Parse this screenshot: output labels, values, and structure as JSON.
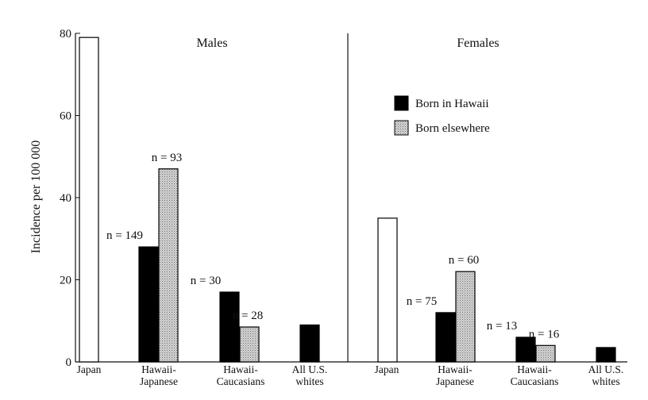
{
  "chart_data": {
    "type": "bar",
    "ylabel": "Incidence per 100 000",
    "ylim": [
      0,
      80
    ],
    "yticks": [
      "0",
      "20",
      "40",
      "60",
      "80"
    ],
    "grid": false,
    "legend_position": "top-right of females panel",
    "legend": [
      {
        "label": "Born in Hawaii",
        "pattern": "solid-black"
      },
      {
        "label": "Born elsewhere",
        "pattern": "stippled-gray"
      }
    ],
    "panels": [
      {
        "title": "Males",
        "groups": [
          {
            "label": [
              "Japan"
            ],
            "bars": [
              {
                "style": "open",
                "value": 79
              }
            ]
          },
          {
            "label": [
              "Hawaii-",
              "Japanese"
            ],
            "bars": [
              {
                "style": "born_hawaii",
                "value": 28,
                "n_label": "n = 149"
              },
              {
                "style": "born_elsewhere",
                "value": 47,
                "n_label": "n = 93"
              }
            ]
          },
          {
            "label": [
              "Hawaii-",
              "Caucasians"
            ],
            "bars": [
              {
                "style": "born_hawaii",
                "value": 17,
                "n_label": "n = 30"
              },
              {
                "style": "born_elsewhere",
                "value": 8.5,
                "n_label": "n = 28"
              }
            ]
          },
          {
            "label": [
              "All U.S.",
              "whites"
            ],
            "bars": [
              {
                "style": "born_hawaii",
                "value": 9
              }
            ]
          }
        ]
      },
      {
        "title": "Females",
        "groups": [
          {
            "label": [
              "Japan"
            ],
            "bars": [
              {
                "style": "open",
                "value": 35
              }
            ]
          },
          {
            "label": [
              "Hawaii-",
              "Japanese"
            ],
            "bars": [
              {
                "style": "born_hawaii",
                "value": 12,
                "n_label": "n = 75"
              },
              {
                "style": "born_elsewhere",
                "value": 22,
                "n_label": "n = 60"
              }
            ]
          },
          {
            "label": [
              "Hawaii-",
              "Caucasians"
            ],
            "bars": [
              {
                "style": "born_hawaii",
                "value": 6,
                "n_label": "n = 13"
              },
              {
                "style": "born_elsewhere",
                "value": 4,
                "n_label": "n = 16"
              }
            ]
          },
          {
            "label": [
              "All U.S.",
              "whites"
            ],
            "bars": [
              {
                "style": "born_hawaii",
                "value": 3.5
              }
            ]
          }
        ]
      }
    ]
  }
}
